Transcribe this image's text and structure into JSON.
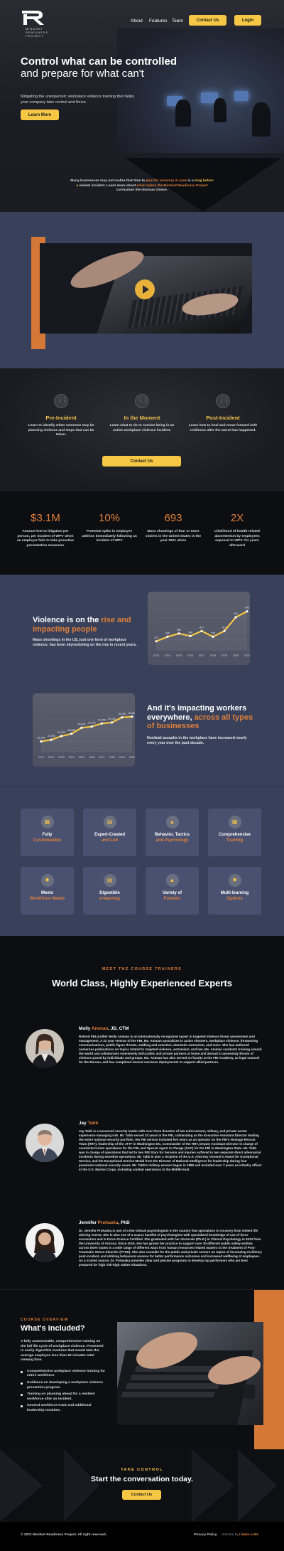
{
  "nav": {
    "logo_sub": [
      "MINDSET",
      "READINESS",
      "PROJECT"
    ],
    "links": [
      "About",
      "Features",
      "Team"
    ],
    "contact_btn": "Contact Us",
    "login_btn": "Login"
  },
  "hero": {
    "title_bold": "Control what can be controlled",
    "title_rest": " and prepare for what can't",
    "lead": "Mitigating the unexpected: workplace violence training that helps your company take control and thrive.",
    "learn_btn": "Learn More",
    "intro_1": "Many businesses may not realize that time to ",
    "intro_hl1": "plan for recovery in case",
    "intro_2": " is a ",
    "intro_hl2": "long before a",
    "intro_3": " violent incident. Learn more about ",
    "intro_hl3": "what makes the Mindset Readiness Project",
    "intro_4": " curriculum the obvious choice."
  },
  "phases": [
    {
      "title": "Pre-Incident",
      "text": "Learn to identify when someone may be planning violence and steps that can be taken."
    },
    {
      "title": "In the Moment",
      "text": "Learn what to do to survive being in an active workplace violence incident."
    },
    {
      "title": "Post-Incident",
      "text": "Learn how to heal and move forward with resilience after the worst has happened."
    }
  ],
  "phases_cta": "Contact Us",
  "stats": [
    {
      "num": "$3.1M",
      "text": "Amount lost to litigation per person, per incident of WPV when an employer fails to take proactive preventative measures"
    },
    {
      "num": "10%",
      "text": "Potential spike in employee attrition immediately following an incident of WPV"
    },
    {
      "num": "693",
      "text": "Mass shootings of four or more victims in the United States in the year 2021 alone"
    },
    {
      "num": "2X",
      "text": "Likelihood of health-related absenteeism by employees exposed to WPV- for years afterward"
    }
  ],
  "violence1": {
    "title_a": "Violence is on the ",
    "title_b": "rise and impacting people",
    "text": "Mass shootings in the US, just one form of workplace violence, has been skyrocketing on the rise in recent years."
  },
  "violence2": {
    "title_a": "And it's impacting workers everywhere, ",
    "title_b": "across all types of businesses",
    "text": "Nonfatal assaults in the workplace have increased nearly every year over the past decade."
  },
  "chart_data": [
    {
      "type": "area",
      "x": [
        "2013",
        "2014",
        "2015",
        "2016",
        "2017",
        "2018",
        "2019",
        "2020",
        "2021"
      ],
      "values": [
        272,
        336,
        382,
        346,
        417,
        336,
        417,
        610,
        693
      ],
      "data_labels": [
        "272",
        "336",
        "382",
        "346",
        "417",
        "336",
        "417",
        "610",
        "693"
      ],
      "color": "#f6c744"
    },
    {
      "type": "area",
      "x": [
        "2011",
        "2012",
        "2013",
        "2014",
        "2015",
        "2016",
        "2017",
        "2018",
        "2019",
        "2020"
      ],
      "values": [
        21.0,
        22.0,
        24.1,
        25.5,
        29.0,
        29.7,
        31.5,
        32.1,
        35.1,
        35.5
      ],
      "data_labels": [
        "21,000",
        "22,000",
        "24,100",
        "25,500",
        "29,000",
        "29,700",
        "31,500",
        "32,100",
        "35,100",
        "35,500"
      ],
      "color": "#f6c744"
    }
  ],
  "features": [
    {
      "a": "Fully",
      "b": "Customizable",
      "icon": "grid-icon"
    },
    {
      "a": "Expert-Created",
      "b": "and Led",
      "icon": "book-icon"
    },
    {
      "a": "Behavior, Tactics",
      "b": "and Psychology",
      "icon": "warning-icon"
    },
    {
      "a": "Comprehensive",
      "b": "Training",
      "icon": "grid-icon"
    },
    {
      "a": "Meets",
      "b": "Workforce Needs",
      "icon": "gear-icon"
    },
    {
      "a": "Digestible",
      "b": "e-learning",
      "icon": "book-icon"
    },
    {
      "a": "Variety of",
      "b": "Formats",
      "icon": "warning-icon"
    },
    {
      "a": "Multi-learning",
      "b": "Options",
      "icon": "gear-icon"
    }
  ],
  "trainers_section": {
    "kicker": "MEET THE COURSE TRAINERS",
    "title": "World Class, Highly Experienced Experts"
  },
  "trainers": [
    {
      "first": "Molly ",
      "last": "Amman",
      "suffix": ", JD, CTM",
      "bio": "Retired FBI profiler Molly Amman is an internationally recognized expert in targeted violence threat assessment and management. A 22 year veteran of the FBI, Ms. Amman specializes in active shooters, workplace violence, threatening communications, public figure threats, stalking and extortion, domestic extremism, and more. She has authored numerous publications on topics related to targeted violence, extremism, and law. Ms. Amman conducts training around the world and collaborates extensively with public and private partners at home and abroad in assessing threats of violence posed by individuals and groups. Ms. Amman has also served on faculty at the FBI Academy, as legal counsel for the Bureau, and has completed several overseas deployments to support allied partners."
    },
    {
      "first": "Jay ",
      "last": "Tabb",
      "suffix": "",
      "bio": "Jay Tabb is a seasoned security leader with over three decades of law enforcement, military, and private sector experience managing risk. Mr. Tabb served 23 years in the FBI, culminating as the Executive Assistant Director leading the entire national security portfolio. His FBI service included five years as an operator on the FBI's Hostage Rescue Team (HRT), leadership of the JTTF in Washington DC, Commander of the HRT, Deputy Assistant Director in charge of counterterrorism operations for the FBI, and Special Agent in Charge (SAC) for the FBI in Washington State. Mr. Tabb was in charge of operations that led to two FBI Stars for heroism and injuries suffered in two separate direct adversarial incidents during sensitive operations. Mr. Tabb is also a recipient of the U.S. Attorney General's Award for Exceptional Service, and the Exceptional Service Medal from the Director of National Intelligence for leadership during four prominent national security cases. Mr. Tabb's military service began in 1989 and included over 7 years as infantry officer in the U.S. Marine Corps, including combat operations in the Middle East."
    },
    {
      "first": "Jennifer ",
      "last": "Prohaska",
      "suffix": ", PhD",
      "bio": "Dr. Jennifer Prohaska is one of a few clinical psychologists in the country that specializes in recovery from violent life altering events. She is also one of a scarce handful of psychologists with specialized knowledge of use of force encounters and is Force Science Certified. She graduated with her doctorate (Ph.D.) in Clinical Psychology in 2013 from the University of Arizona. Since 2015, she has grown her practice to support over 30 different public safety entities across three states in a wide range of different ways from human resources-related matters to the treatment of Post-Traumatic Stress Disorder (PTSD). She also consults for the public and private sectors on topics of increasing resiliency post-incident, and utilizing behavioral science for better performance outcomes and increased wellbeing of employees. As a trusted source, Dr. Prohaska provides clear and precise programs to develop top performers who are best prepared for high risk-high stakes situations."
    }
  ],
  "included": {
    "kicker": "COURSE OVERVIEW",
    "title": "What's included?",
    "lead": "A fully customizable, comprehensive training on the full life cycle of workplace violence. Presented in easily digestible modules that would take the average employee less than 90 minutes total viewing time.",
    "items": [
      "Comprehensive workplace violence training for entire workforce.",
      "Guidance on developing a workplace violence prevention program.",
      "Training on planning ahead for a resilient workforce after an incident.",
      "General workforce track and additional leadership modules."
    ]
  },
  "contact": {
    "kicker": "TAKE CONTROL",
    "title": "Start the conversation today.",
    "btn": "Contact Us"
  },
  "footer": {
    "copyright": "© 2022 Mindset Readiness Project. All right reserved.",
    "privacy": "Privacy Policy",
    "made_pre": "Website by ",
    "made_by": "I Make a Biz"
  }
}
